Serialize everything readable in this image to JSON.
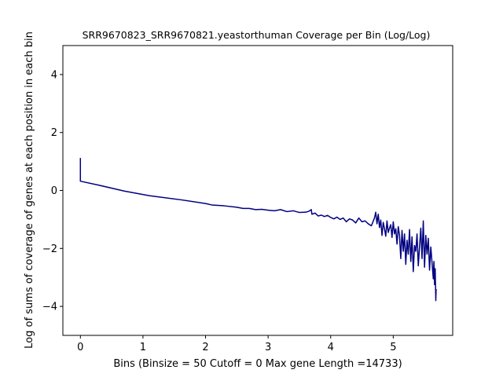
{
  "chart_data": {
    "type": "line",
    "title": "SRR9670823_SRR9670821.yeastorthuman Coverage per Bin (Log/Log)",
    "xlabel": "Bins  (Binsize = 50 Cutoff = 0 Max gene Length =14733)",
    "ylabel": "Log of sums of coverage of genes at each position in each bin",
    "xlim": [
      -0.28,
      5.95
    ],
    "ylim": [
      -5,
      5
    ],
    "xticks": [
      0,
      1,
      2,
      3,
      4,
      5
    ],
    "yticks": [
      -4,
      -2,
      0,
      2,
      4
    ],
    "grid": false,
    "line_color": "#000080",
    "series": [
      {
        "x": [
          0,
          0,
          0.3,
          0.7,
          1.1,
          1.6,
          2.0,
          2.1,
          2.3,
          2.5,
          2.6,
          2.7,
          2.8,
          2.9,
          3.0,
          3.1,
          3.2,
          3.3,
          3.4,
          3.5,
          3.6,
          3.65,
          3.69,
          3.7,
          3.75,
          3.8,
          3.85,
          3.9,
          3.95,
          4.0,
          4.05,
          4.1,
          4.15,
          4.2,
          4.25,
          4.3,
          4.35,
          4.4,
          4.45,
          4.5,
          4.55,
          4.6,
          4.65,
          4.7,
          4.72,
          4.74,
          4.76,
          4.78,
          4.8,
          4.82,
          4.84,
          4.86,
          4.88,
          4.9,
          4.92,
          4.94,
          4.96,
          4.98,
          5.0,
          5.02,
          5.04,
          5.06,
          5.08,
          5.1,
          5.12,
          5.14,
          5.16,
          5.18,
          5.2,
          5.22,
          5.24,
          5.26,
          5.28,
          5.3,
          5.32,
          5.34,
          5.36,
          5.38,
          5.4,
          5.42,
          5.44,
          5.46,
          5.48,
          5.5,
          5.52,
          5.54,
          5.56,
          5.58,
          5.6,
          5.62,
          5.64,
          5.65,
          5.66,
          5.67,
          5.68,
          5.685
        ],
        "y": [
          1.12,
          0.32,
          0.18,
          -0.02,
          -0.18,
          -0.32,
          -0.45,
          -0.5,
          -0.53,
          -0.58,
          -0.62,
          -0.62,
          -0.66,
          -0.65,
          -0.68,
          -0.7,
          -0.66,
          -0.73,
          -0.7,
          -0.76,
          -0.75,
          -0.72,
          -0.66,
          -0.82,
          -0.78,
          -0.88,
          -0.85,
          -0.9,
          -0.86,
          -0.93,
          -0.98,
          -0.92,
          -1.0,
          -0.95,
          -1.08,
          -0.98,
          -1.02,
          -1.12,
          -0.95,
          -1.08,
          -1.05,
          -1.15,
          -1.22,
          -0.95,
          -0.75,
          -1.15,
          -0.82,
          -1.28,
          -1.02,
          -1.55,
          -1.1,
          -1.32,
          -1.58,
          -1.05,
          -1.45,
          -1.3,
          -1.18,
          -1.62,
          -1.08,
          -1.5,
          -1.32,
          -1.85,
          -1.25,
          -1.55,
          -2.35,
          -1.38,
          -2.1,
          -1.5,
          -2.55,
          -1.72,
          -2.2,
          -1.35,
          -2.45,
          -1.6,
          -2.8,
          -1.9,
          -2.1,
          -1.5,
          -2.6,
          -1.95,
          -1.3,
          -2.35,
          -1.05,
          -2.65,
          -1.55,
          -2.2,
          -1.65,
          -2.75,
          -1.95,
          -2.5,
          -3.05,
          -2.45,
          -3.25,
          -2.7,
          -3.8,
          -3.4
        ]
      }
    ]
  }
}
